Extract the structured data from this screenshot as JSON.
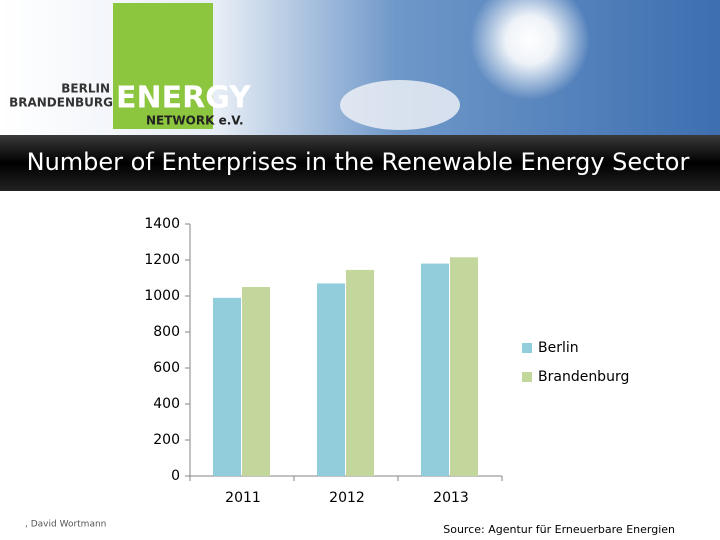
{
  "header": {
    "logo_line1": "BERLIN",
    "logo_line2": "BRANDENBURG",
    "logo_word": "ENERGY",
    "logo_network": "NETWORK e.V."
  },
  "chart_data": {
    "type": "bar",
    "title": "Number of Enterprises in the Renewable Energy Sector",
    "categories": [
      "2011",
      "2012",
      "2013"
    ],
    "series": [
      {
        "name": "Berlin",
        "color": "#92cddc",
        "values": [
          990,
          1070,
          1180
        ]
      },
      {
        "name": "Brandenburg",
        "color": "#c3d69b",
        "values": [
          1050,
          1145,
          1215
        ]
      }
    ],
    "ylim": [
      0,
      1400
    ],
    "yticks": [
      0,
      200,
      400,
      600,
      800,
      1000,
      1200,
      1400
    ],
    "grid": false,
    "legend": "right"
  },
  "footer": {
    "author": ", David Wortmann",
    "source": "Source: Agentur für Erneuerbare Energien"
  }
}
